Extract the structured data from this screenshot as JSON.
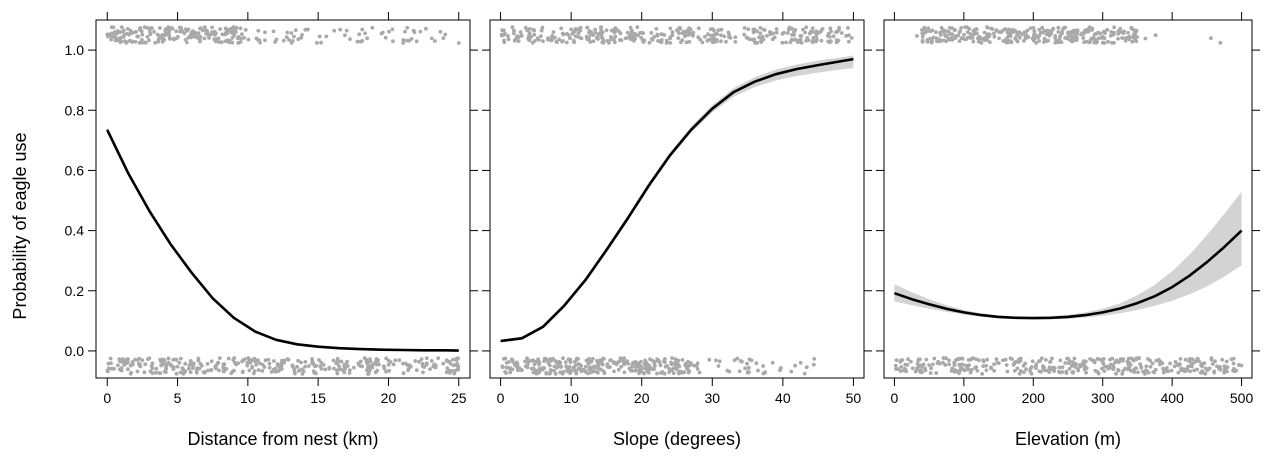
{
  "figure": {
    "ylabel": "Probability of eagle use"
  },
  "colors": {
    "line": "#000000",
    "band": "#d3d3d3",
    "points": "#a9a9a9"
  },
  "chart_data": [
    {
      "type": "line",
      "xlabel": "Distance from nest (km)",
      "ylabel": "Probability of eagle use",
      "xlim": [
        -0.8,
        25.8
      ],
      "ylim": [
        -0.09,
        1.1
      ],
      "xticks": [
        0,
        5,
        10,
        15,
        20,
        25
      ],
      "yticks": [
        0.0,
        0.2,
        0.4,
        0.6,
        0.8,
        1.0
      ],
      "series": [
        {
          "x": [
            0,
            1.5,
            3,
            4.5,
            6,
            7.5,
            9,
            10.5,
            12,
            13.5,
            15,
            16.5,
            18,
            19.5,
            21,
            22.5,
            24,
            25
          ],
          "y": [
            0.735,
            0.59,
            0.465,
            0.355,
            0.26,
            0.175,
            0.11,
            0.065,
            0.037,
            0.022,
            0.014,
            0.009,
            0.006,
            0.004,
            0.003,
            0.002,
            0.002,
            0.001
          ],
          "lower": [
            0.725,
            0.582,
            0.458,
            0.349,
            0.255,
            0.171,
            0.107,
            0.063,
            0.035,
            0.021,
            0.013,
            0.008,
            0.005,
            0.003,
            0.002,
            0.0015,
            0.001,
            0.001
          ],
          "upper": [
            0.745,
            0.598,
            0.472,
            0.361,
            0.265,
            0.179,
            0.113,
            0.067,
            0.039,
            0.023,
            0.015,
            0.01,
            0.007,
            0.005,
            0.004,
            0.003,
            0.002,
            0.002
          ]
        }
      ],
      "rug": {
        "top": {
          "y": 1.05,
          "dense_range": [
            0,
            9.5
          ],
          "sparse_range": [
            9.5,
            25
          ],
          "dense_count": 200,
          "sparse_count": 70
        },
        "bottom": {
          "y": -0.05,
          "dense_range": [
            0,
            25
          ],
          "sparse_range": [
            25,
            25
          ],
          "dense_count": 340,
          "sparse_count": 0
        }
      }
    },
    {
      "type": "line",
      "xlabel": "Slope (degrees)",
      "ylabel": "",
      "xlim": [
        -1.5,
        51.5
      ],
      "ylim": [
        -0.09,
        1.1
      ],
      "xticks": [
        0,
        10,
        20,
        30,
        40,
        50
      ],
      "yticks": [
        0.0,
        0.2,
        0.4,
        0.6,
        0.8,
        1.0
      ],
      "series": [
        {
          "x": [
            0,
            3,
            6,
            9,
            12,
            15,
            18,
            21,
            24,
            27,
            30,
            33,
            36,
            39,
            42,
            45,
            48,
            50
          ],
          "y": [
            0.033,
            0.042,
            0.08,
            0.15,
            0.235,
            0.335,
            0.44,
            0.55,
            0.65,
            0.735,
            0.805,
            0.86,
            0.895,
            0.92,
            0.937,
            0.95,
            0.962,
            0.97
          ],
          "lower": [
            0.028,
            0.037,
            0.074,
            0.143,
            0.227,
            0.326,
            0.431,
            0.541,
            0.641,
            0.725,
            0.793,
            0.845,
            0.877,
            0.899,
            0.914,
            0.925,
            0.935,
            0.94
          ],
          "upper": [
            0.038,
            0.047,
            0.086,
            0.157,
            0.243,
            0.344,
            0.449,
            0.559,
            0.659,
            0.745,
            0.817,
            0.873,
            0.91,
            0.935,
            0.952,
            0.965,
            0.975,
            0.982
          ]
        }
      ],
      "rug": {
        "top": {
          "y": 1.05,
          "dense_range": [
            0,
            44
          ],
          "sparse_range": [
            44,
            50
          ],
          "dense_count": 320,
          "sparse_count": 40
        },
        "bottom": {
          "y": -0.05,
          "dense_range": [
            0,
            28
          ],
          "sparse_range": [
            28,
            45
          ],
          "dense_count": 300,
          "sparse_count": 35
        }
      }
    },
    {
      "type": "line",
      "xlabel": "Elevation (m)",
      "ylabel": "",
      "xlim": [
        -15,
        515
      ],
      "ylim": [
        -0.09,
        1.1
      ],
      "xticks": [
        0,
        100,
        200,
        300,
        400,
        500
      ],
      "yticks": [
        0.0,
        0.2,
        0.4,
        0.6,
        0.8,
        1.0
      ],
      "series": [
        {
          "x": [
            0,
            25,
            50,
            75,
            100,
            125,
            150,
            175,
            200,
            225,
            250,
            275,
            300,
            325,
            350,
            375,
            400,
            425,
            450,
            475,
            500
          ],
          "y": [
            0.192,
            0.172,
            0.155,
            0.14,
            0.128,
            0.119,
            0.113,
            0.11,
            0.109,
            0.11,
            0.113,
            0.119,
            0.128,
            0.141,
            0.159,
            0.182,
            0.212,
            0.25,
            0.295,
            0.345,
            0.4
          ],
          "lower": [
            0.165,
            0.152,
            0.14,
            0.13,
            0.121,
            0.114,
            0.109,
            0.106,
            0.105,
            0.105,
            0.107,
            0.111,
            0.117,
            0.125,
            0.136,
            0.15,
            0.167,
            0.188,
            0.214,
            0.247,
            0.285
          ],
          "upper": [
            0.222,
            0.195,
            0.172,
            0.152,
            0.136,
            0.125,
            0.118,
            0.114,
            0.113,
            0.115,
            0.12,
            0.128,
            0.14,
            0.158,
            0.185,
            0.22,
            0.265,
            0.32,
            0.385,
            0.455,
            0.53
          ]
        }
      ],
      "rug": {
        "top": {
          "y": 1.05,
          "dense_range": [
            35,
            350
          ],
          "sparse_range": [
            0,
            480
          ],
          "dense_count": 300,
          "sparse_count": 18
        },
        "bottom": {
          "y": -0.05,
          "dense_range": [
            0,
            500
          ],
          "sparse_range": [
            0,
            500
          ],
          "dense_count": 360,
          "sparse_count": 0
        }
      }
    }
  ]
}
